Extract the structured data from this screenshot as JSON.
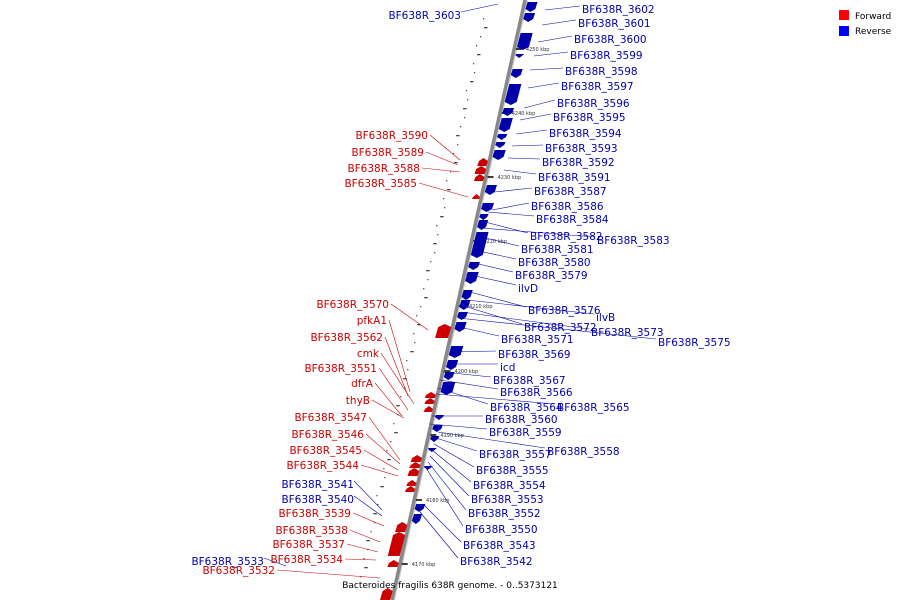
{
  "caption": "Bacteroides fragilis 638R genome. - 0..5373121",
  "legend": [
    {
      "label": "Forward",
      "color": "#ff0000"
    },
    {
      "label": "Reverse",
      "color": "#0000ff"
    }
  ],
  "colors": {
    "forward": "#cc0000",
    "reverse": "#0000aa",
    "axis": "#888888"
  },
  "kbp_ticks": [
    "4250 kbp",
    "4240 kbp",
    "4230 kbp",
    "4220 kbp",
    "4210 kbp",
    "4200 kbp",
    "4190 kbp",
    "4180 kbp",
    "4170 kbp"
  ],
  "genes_reverse": [
    "BF638R_3603",
    "BF638R_3602",
    "BF638R_3601",
    "BF638R_3600",
    "BF638R_3599",
    "BF638R_3598",
    "BF638R_3597",
    "BF638R_3596",
    "BF638R_3595",
    "BF638R_3594",
    "BF638R_3593",
    "BF638R_3592",
    "BF638R_3591",
    "BF638R_3587",
    "BF638R_3586",
    "BF638R_3584",
    "BF638R_3582",
    "BF638R_3583",
    "BF638R_3581",
    "BF638R_3580",
    "BF638R_3579",
    "ilvD",
    "BF638R_3576",
    "ilvB",
    "BF638R_3572",
    "BF638R_3573",
    "BF638R_3575",
    "BF638R_3571",
    "BF638R_3569",
    "icd",
    "BF638R_3567",
    "BF638R_3566",
    "BF638R_3564",
    "BF638R_3565",
    "BF638R_3560",
    "BF638R_3559",
    "BF638R_3558",
    "BF638R_3557",
    "BF638R_3555",
    "BF638R_3554",
    "BF638R_3553",
    "BF638R_3552",
    "BF638R_3550",
    "BF638R_3543",
    "BF638R_3542",
    "BF638R_3541",
    "BF638R_3540",
    "BF638R_3533"
  ],
  "genes_forward": [
    "BF638R_3590",
    "BF638R_3589",
    "BF638R_3588",
    "BF638R_3585",
    "BF638R_3570",
    "pfkA1",
    "BF638R_3562",
    "cmk",
    "BF638R_3551",
    "dfrA",
    "thyB",
    "BF638R_3547",
    "BF638R_3546",
    "BF638R_3545",
    "BF638R_3544",
    "BF638R_3539",
    "BF638R_3538",
    "BF638R_3537",
    "BF638R_3534",
    "BF638R_3532"
  ]
}
